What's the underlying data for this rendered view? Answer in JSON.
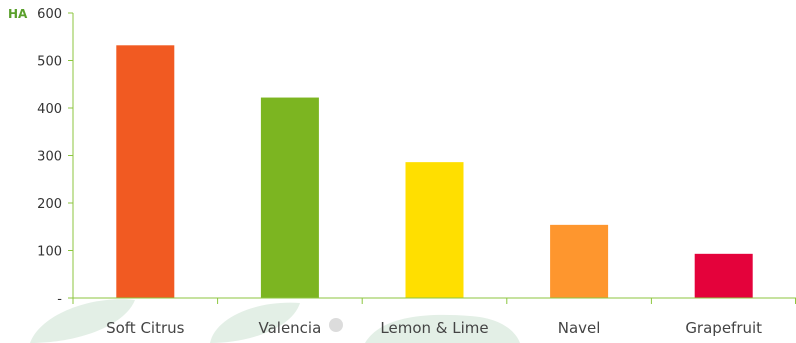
{
  "chart_data": {
    "type": "bar",
    "unit_label": "HA",
    "categories": [
      "Soft Citrus",
      "Valencia",
      "Lemon & Lime",
      "Navel",
      "Grapefruit"
    ],
    "values": [
      532,
      422,
      286,
      154,
      93
    ],
    "colors": [
      "#f15a22",
      "#7cb521",
      "#ffdf00",
      "#fe962e",
      "#e4023b"
    ],
    "yticks": [
      {
        "value": 0,
        "label": "-"
      },
      {
        "value": 100,
        "label": "100"
      },
      {
        "value": 200,
        "label": "200"
      },
      {
        "value": 300,
        "label": "300"
      },
      {
        "value": 400,
        "label": "400"
      },
      {
        "value": 500,
        "label": "500"
      },
      {
        "value": 600,
        "label": "600"
      }
    ],
    "ylim": [
      0,
      600
    ],
    "grid": false,
    "axis_color": "#8cc63f",
    "unit_color": "#5aa02c",
    "watermark_color": "#e3efe6"
  }
}
